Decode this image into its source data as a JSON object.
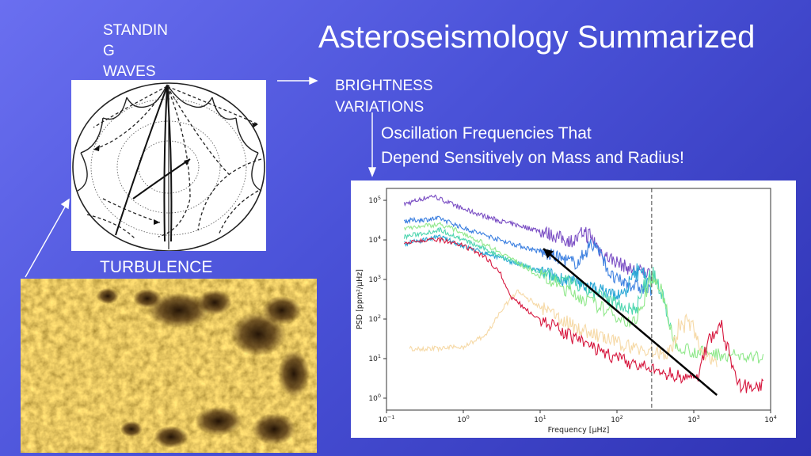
{
  "slide": {
    "title": "Asteroseismology Summarized",
    "standing_waves_label": "STANDIN\nG\nWAVES",
    "brightness_label": "BRIGHTNESS\nVARIATIONS",
    "oscillation_text": "Oscillation Frequencies That\nDepend Sensitively on Mass and Radius!",
    "turbulence_label": "TURBULENCE"
  },
  "chart_data": {
    "type": "line",
    "title": "",
    "xlabel": "Frequency [μHz]",
    "ylabel": "PSD [ppm²/μHz]",
    "x_scale": "log",
    "y_scale": "log",
    "xlim": [
      0.1,
      10000
    ],
    "ylim": [
      0.5,
      200000
    ],
    "x_ticks": [
      {
        "value": 0.1,
        "base": "10",
        "exp": "−1"
      },
      {
        "value": 1,
        "base": "10",
        "exp": "0"
      },
      {
        "value": 10,
        "base": "10",
        "exp": "1"
      },
      {
        "value": 100,
        "base": "10",
        "exp": "2"
      },
      {
        "value": 1000,
        "base": "10",
        "exp": "3"
      },
      {
        "value": 10000,
        "base": "10",
        "exp": "4"
      }
    ],
    "y_ticks": [
      {
        "value": 1,
        "base": "10",
        "exp": "0"
      },
      {
        "value": 10,
        "base": "10",
        "exp": "1"
      },
      {
        "value": 100,
        "base": "10",
        "exp": "2"
      },
      {
        "value": 1000,
        "base": "10",
        "exp": "3"
      },
      {
        "value": 10000,
        "base": "10",
        "exp": "4"
      },
      {
        "value": 100000,
        "base": "10",
        "exp": "5"
      }
    ],
    "vline_x": 283,
    "grid": false,
    "legend": "none",
    "series": [
      {
        "color": "#7b4fc4",
        "x": [
          0.17,
          0.4,
          1,
          3,
          10,
          30,
          80,
          150,
          283
        ],
        "y": [
          80000,
          130000,
          60000,
          30000,
          17000,
          8000,
          3500,
          1800,
          1400
        ],
        "peak": {
          "x": 40,
          "y": 8000
        }
      },
      {
        "color": "#3b7fe0",
        "x": [
          0.17,
          0.5,
          1,
          3,
          10,
          30,
          80,
          283
        ],
        "y": [
          30000,
          35000,
          20000,
          10000,
          5000,
          2500,
          1100,
          500
        ],
        "peak": {
          "x": 50,
          "y": 6000
        }
      },
      {
        "color": "#2aa7d6",
        "x": [
          0.17,
          0.5,
          1,
          3,
          10,
          30,
          100,
          283
        ],
        "y": [
          8000,
          12000,
          7000,
          3500,
          1600,
          800,
          400,
          250
        ],
        "peak": {
          "x": 200,
          "y": 1500
        }
      },
      {
        "color": "#4fd6b0",
        "x": [
          0.17,
          0.5,
          1,
          3,
          10,
          30,
          100,
          300,
          500
        ],
        "y": [
          12000,
          18000,
          10000,
          4000,
          1500,
          700,
          250,
          100,
          40
        ],
        "peak": {
          "x": 290,
          "y": 1200
        }
      },
      {
        "color": "#8fe88a",
        "x": [
          0.17,
          0.5,
          1,
          3,
          10,
          30,
          100,
          300,
          1000,
          8000
        ],
        "y": [
          20000,
          25000,
          15000,
          5000,
          1200,
          400,
          120,
          40,
          15,
          10
        ],
        "peak": {
          "x": 300,
          "y": 900
        }
      },
      {
        "color": "#f6d9a6",
        "x": [
          0.2,
          0.5,
          1,
          2,
          3,
          5,
          10,
          30,
          100,
          300,
          1000,
          2000
        ],
        "y": [
          18,
          18,
          20,
          40,
          150,
          500,
          200,
          60,
          25,
          14,
          10,
          9
        ],
        "peak": {
          "x": 800,
          "y": 90
        }
      },
      {
        "color": "#d6153c",
        "x": [
          0.17,
          0.5,
          1,
          2,
          3,
          4,
          6,
          10,
          30,
          100,
          300,
          1000,
          3000,
          8000
        ],
        "y": [
          9000,
          10000,
          7000,
          3500,
          1500,
          400,
          200,
          100,
          30,
          10,
          5,
          3,
          2,
          2
        ],
        "peak": {
          "x": 2000,
          "y": 60
        }
      }
    ],
    "arrow": {
      "from": {
        "x": 2000,
        "y": 1.2
      },
      "to": {
        "x": 11,
        "y": 6000
      }
    }
  }
}
